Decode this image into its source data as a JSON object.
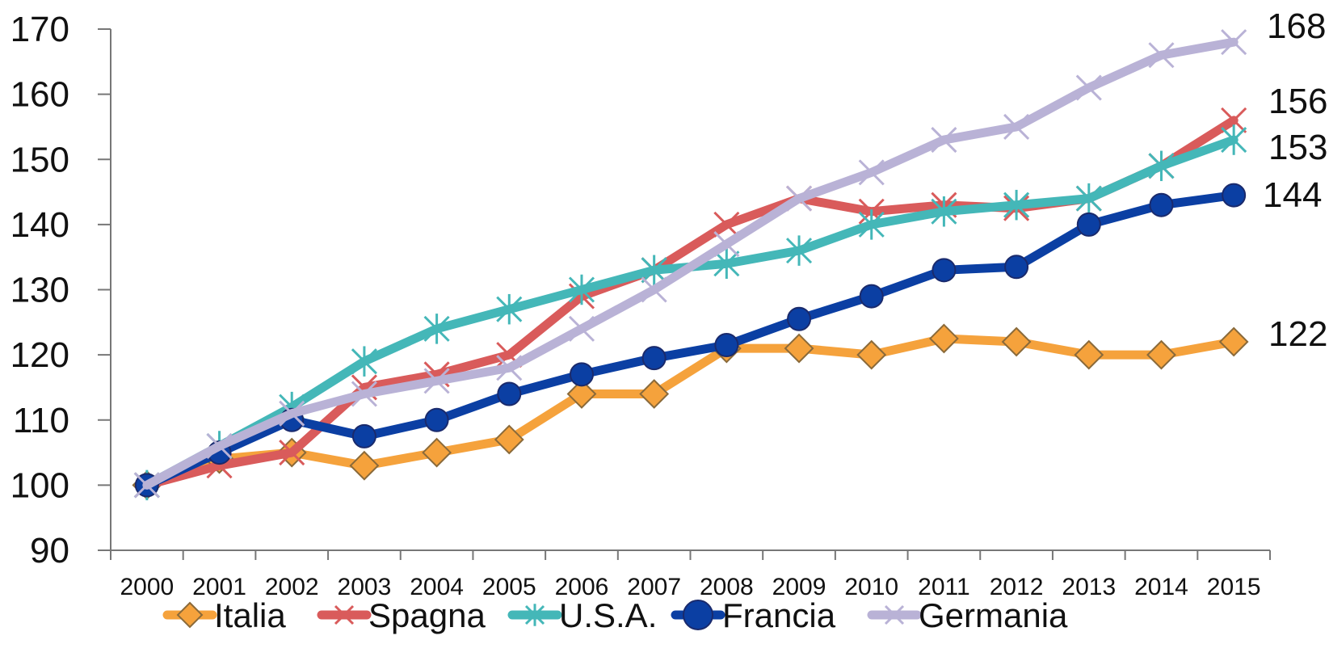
{
  "chart_data": {
    "type": "line",
    "x": [
      "2000",
      "2001",
      "2002",
      "2003",
      "2004",
      "2005",
      "2006",
      "2007",
      "2008",
      "2009",
      "2010",
      "2011",
      "2012",
      "2013",
      "2014",
      "2015"
    ],
    "ylim": [
      90,
      170
    ],
    "yticks": [
      "90",
      "100",
      "110",
      "120",
      "130",
      "140",
      "150",
      "160",
      "170"
    ],
    "grid": false,
    "legend_position": "bottom",
    "series": [
      {
        "name": "Italia",
        "color": "#F5A23C",
        "marker": "diamond",
        "values": [
          100,
          104,
          105,
          103,
          105,
          107,
          114,
          114,
          121,
          121,
          120,
          122.5,
          122,
          120,
          120,
          122
        ]
      },
      {
        "name": "Spagna",
        "color": "#D95B5B",
        "marker": "x",
        "values": [
          100,
          103,
          105,
          115,
          117,
          120,
          129,
          133,
          140,
          144,
          142,
          143,
          142.5,
          144,
          149,
          156
        ]
      },
      {
        "name": "U.S.A.",
        "color": "#44B7B8",
        "marker": "asterisk",
        "values": [
          100,
          106,
          112,
          119,
          124,
          127,
          130,
          133,
          134,
          136,
          140,
          142,
          143,
          144,
          149,
          153
        ]
      },
      {
        "name": "Francia",
        "color": "#0B3FA3",
        "marker": "circle",
        "values": [
          100,
          105,
          110,
          107.5,
          110,
          114,
          117,
          119.5,
          121.5,
          125.5,
          129,
          133,
          133.5,
          140,
          143,
          144.5
        ]
      },
      {
        "name": "Germania",
        "color": "#B9B2D6",
        "marker": "x",
        "values": [
          100,
          106,
          111,
          114,
          116,
          118,
          124,
          130,
          137,
          144,
          148,
          153,
          155,
          161,
          166,
          168
        ]
      }
    ],
    "end_labels": [
      "168",
      "156",
      "153",
      "144",
      "122"
    ]
  }
}
